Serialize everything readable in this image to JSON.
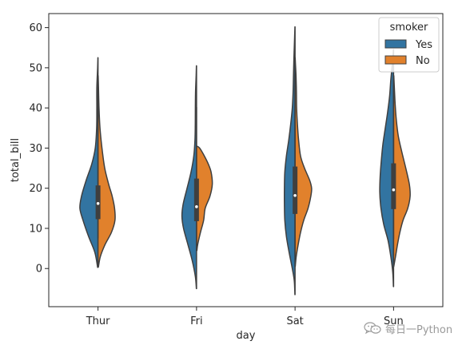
{
  "chart_data": {
    "type": "violin",
    "xlabel": "day",
    "ylabel": "total_bill",
    "categories": [
      "Thur",
      "Fri",
      "Sat",
      "Sun"
    ],
    "ylim": [
      -9.5,
      63.5
    ],
    "yticks": [
      0,
      10,
      20,
      30,
      40,
      50,
      60
    ],
    "grid": false,
    "split": true,
    "legend": {
      "title": "smoker",
      "position": "top-right"
    },
    "series": [
      {
        "name": "Yes",
        "color": "#3274a1",
        "violins": [
          {
            "day": "Thur",
            "profile": [
              [
                0.3,
                0.01
              ],
              [
                4,
                0.08
              ],
              [
                8,
                0.24
              ],
              [
                12,
                0.38
              ],
              [
                15,
                0.46
              ],
              [
                18,
                0.42
              ],
              [
                22,
                0.3
              ],
              [
                26,
                0.16
              ],
              [
                30,
                0.07
              ],
              [
                35,
                0.035
              ],
              [
                40,
                0.03
              ],
              [
                45,
                0.03
              ],
              [
                50,
                0.01
              ],
              [
                52.5,
                0.003
              ]
            ]
          },
          {
            "day": "Fri",
            "profile": [
              [
                -5,
                0.004
              ],
              [
                -2,
                0.03
              ],
              [
                2,
                0.11
              ],
              [
                6,
                0.22
              ],
              [
                10,
                0.33
              ],
              [
                13,
                0.37
              ],
              [
                16,
                0.34
              ],
              [
                20,
                0.24
              ],
              [
                24,
                0.14
              ],
              [
                28,
                0.07
              ],
              [
                32,
                0.04
              ],
              [
                36,
                0.032
              ],
              [
                40,
                0.03
              ],
              [
                44,
                0.025
              ],
              [
                48,
                0.01
              ],
              [
                50.5,
                0.003
              ]
            ]
          },
          {
            "day": "Sat",
            "profile": [
              [
                -6.5,
                0.004
              ],
              [
                -3,
                0.02
              ],
              [
                0,
                0.07
              ],
              [
                4,
                0.15
              ],
              [
                8,
                0.22
              ],
              [
                12,
                0.26
              ],
              [
                16,
                0.27
              ],
              [
                20,
                0.27
              ],
              [
                24,
                0.26
              ],
              [
                28,
                0.22
              ],
              [
                32,
                0.16
              ],
              [
                36,
                0.11
              ],
              [
                40,
                0.07
              ],
              [
                44,
                0.05
              ],
              [
                48,
                0.04
              ],
              [
                52,
                0.03
              ],
              [
                55,
                0.02
              ],
              [
                58,
                0.01
              ],
              [
                60.2,
                0.003
              ]
            ]
          },
          {
            "day": "Sun",
            "profile": [
              [
                -4.5,
                0.004
              ],
              [
                -1,
                0.02
              ],
              [
                3,
                0.07
              ],
              [
                7,
                0.14
              ],
              [
                11,
                0.25
              ],
              [
                15,
                0.32
              ],
              [
                19,
                0.35
              ],
              [
                23,
                0.34
              ],
              [
                27,
                0.31
              ],
              [
                31,
                0.27
              ],
              [
                35,
                0.21
              ],
              [
                39,
                0.15
              ],
              [
                43,
                0.1
              ],
              [
                47,
                0.07
              ],
              [
                50,
                0.04
              ],
              [
                52,
                0.02
              ],
              [
                54.5,
                0.004
              ]
            ]
          }
        ]
      },
      {
        "name": "No",
        "color": "#e1812c",
        "violins": [
          {
            "day": "Thur",
            "profile": [
              [
                0.4,
                0.01
              ],
              [
                3,
                0.06
              ],
              [
                6,
                0.18
              ],
              [
                9,
                0.34
              ],
              [
                12,
                0.43
              ],
              [
                15,
                0.42
              ],
              [
                18,
                0.36
              ],
              [
                21,
                0.27
              ],
              [
                25,
                0.17
              ],
              [
                30,
                0.1
              ],
              [
                35,
                0.05
              ],
              [
                40,
                0.025
              ],
              [
                45,
                0.012
              ],
              [
                48,
                0.004
              ]
            ]
          },
          {
            "day": "Fri",
            "profile": [
              [
                4.5,
                0.01
              ],
              [
                6,
                0.03
              ],
              [
                9,
                0.1
              ],
              [
                12,
                0.18
              ],
              [
                15,
                0.22
              ],
              [
                18,
                0.34
              ],
              [
                21,
                0.4
              ],
              [
                24,
                0.37
              ],
              [
                26,
                0.3
              ],
              [
                28,
                0.2
              ],
              [
                30,
                0.08
              ],
              [
                30.5,
                0.003
              ]
            ]
          },
          {
            "day": "Sat",
            "profile": [
              [
                0.5,
                0.005
              ],
              [
                3,
                0.03
              ],
              [
                6,
                0.08
              ],
              [
                9,
                0.14
              ],
              [
                12,
                0.22
              ],
              [
                15,
                0.33
              ],
              [
                18,
                0.4
              ],
              [
                20,
                0.42
              ],
              [
                22,
                0.37
              ],
              [
                25,
                0.24
              ],
              [
                28,
                0.14
              ],
              [
                32,
                0.09
              ],
              [
                36,
                0.06
              ],
              [
                40,
                0.04
              ],
              [
                44,
                0.035
              ],
              [
                48,
                0.025
              ],
              [
                51,
                0.01
              ],
              [
                52.5,
                0.003
              ]
            ]
          },
          {
            "day": "Sun",
            "profile": [
              [
                0.5,
                0.005
              ],
              [
                3,
                0.05
              ],
              [
                6,
                0.1
              ],
              [
                9,
                0.16
              ],
              [
                12,
                0.24
              ],
              [
                15,
                0.36
              ],
              [
                18,
                0.42
              ],
              [
                21,
                0.4
              ],
              [
                25,
                0.31
              ],
              [
                29,
                0.21
              ],
              [
                33,
                0.12
              ],
              [
                37,
                0.07
              ],
              [
                41,
                0.04
              ],
              [
                45,
                0.02
              ],
              [
                48,
                0.006
              ]
            ]
          }
        ]
      }
    ],
    "box_stats": [
      {
        "day": "Thur",
        "q1": 12.3,
        "median": 16.2,
        "q3": 20.7,
        "whisker_low": 7.5,
        "whisker_high": 43
      },
      {
        "day": "Fri",
        "q1": 11.8,
        "median": 15.4,
        "q3": 22.4,
        "whisker_low": 5.8,
        "whisker_high": 40.2
      },
      {
        "day": "Sat",
        "q1": 13.6,
        "median": 18.2,
        "q3": 25.4,
        "whisker_low": 3.1,
        "whisker_high": 48.3
      },
      {
        "day": "Sun",
        "q1": 14.8,
        "median": 19.6,
        "q3": 26.2,
        "whisker_low": 7.3,
        "whisker_high": 45.4
      }
    ]
  },
  "watermark": {
    "text": "每日一Python",
    "icon": "wechat-icon"
  }
}
